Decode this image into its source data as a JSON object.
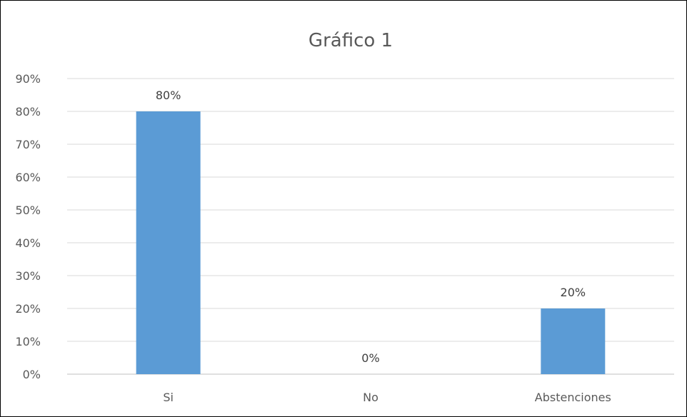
{
  "chart_data": {
    "type": "bar",
    "title": "Gráfico 1",
    "xlabel": "",
    "ylabel": "",
    "categories": [
      "Si",
      "No",
      "Abstenciones"
    ],
    "values": [
      80,
      0,
      20
    ],
    "data_labels": [
      "80%",
      "0%",
      "20%"
    ],
    "ylim": [
      0,
      90
    ],
    "yticks": [
      0,
      10,
      20,
      30,
      40,
      50,
      60,
      70,
      80,
      90
    ],
    "ytick_labels": [
      "0%",
      "10%",
      "20%",
      "30%",
      "40%",
      "50%",
      "60%",
      "70%",
      "80%",
      "90%"
    ],
    "grid": true,
    "legend": "none",
    "bar_color": "#5b9bd5"
  }
}
